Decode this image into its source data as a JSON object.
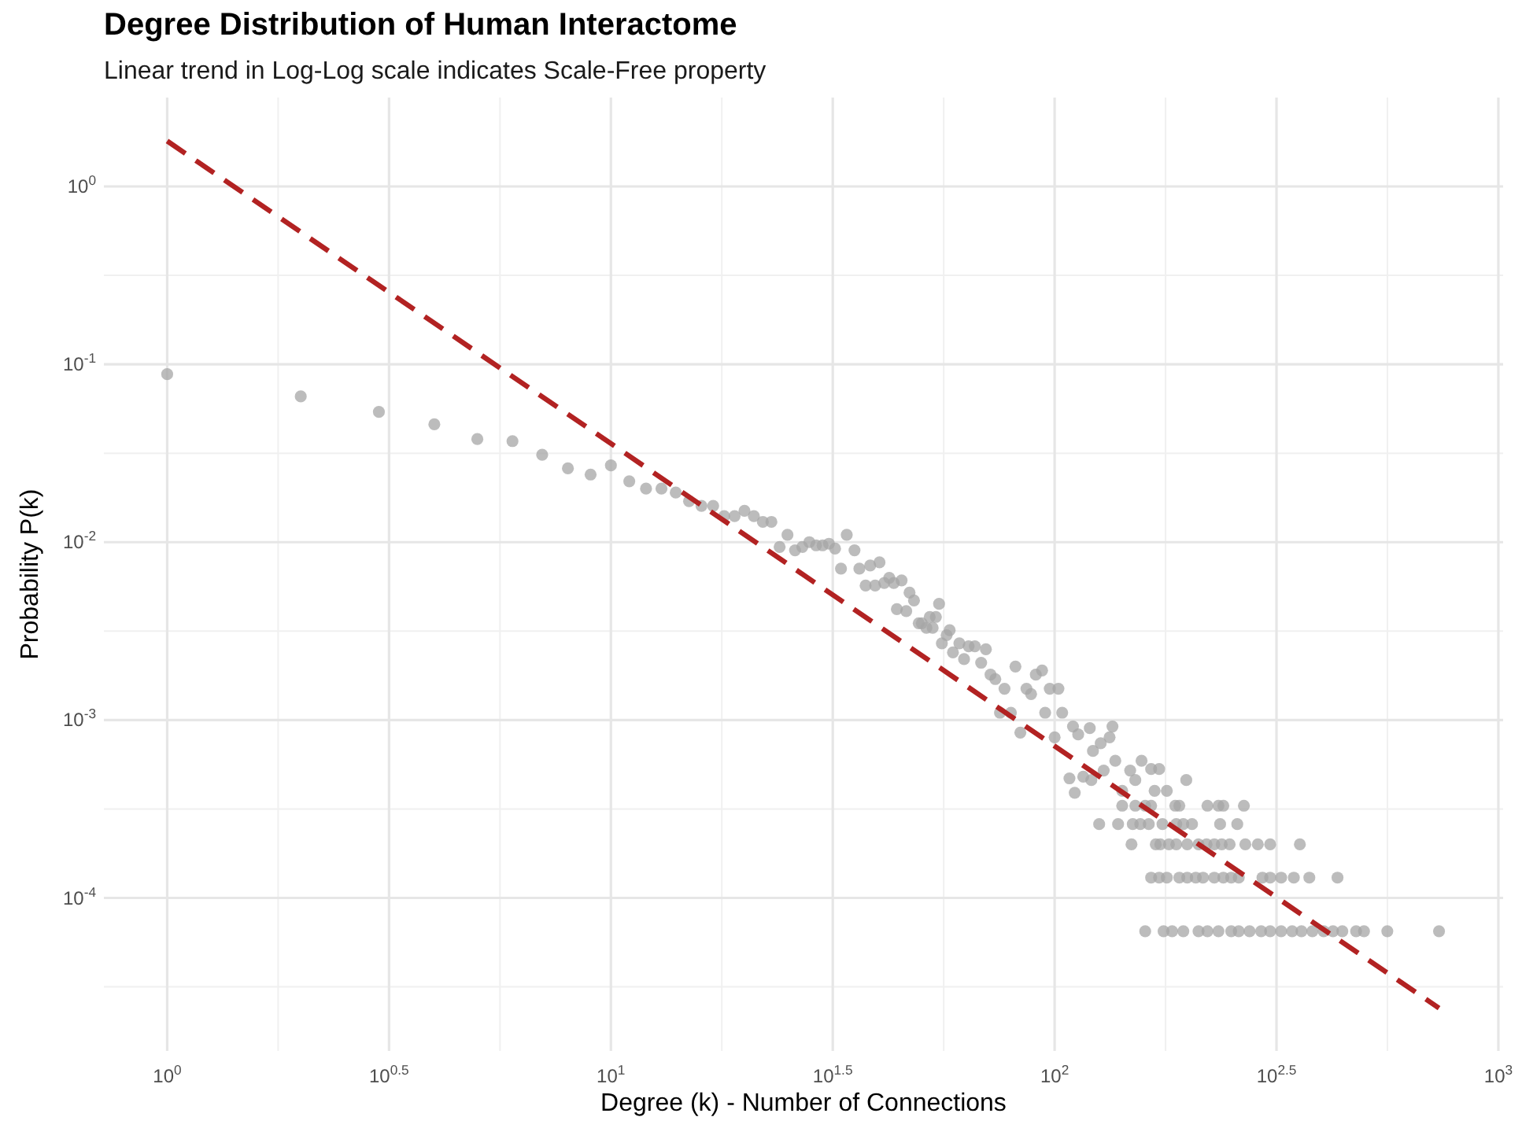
{
  "chart_data": {
    "type": "scatter",
    "title": "Degree Distribution of Human Interactome",
    "subtitle": "Linear trend in Log-Log scale indicates Scale-Free property",
    "xlabel": "Degree (k) - Number of Connections",
    "ylabel": "Probability P(k)",
    "log": "xy",
    "grid": true,
    "marker": "circle",
    "xlim": [
      0.72,
      1025
    ],
    "ylim": [
      1.38e-05,
      3.16
    ],
    "xticks": [
      {
        "value": 1,
        "label": "10$^{0}$"
      },
      {
        "value": 3.1623,
        "label": "10$^{0.5}$"
      },
      {
        "value": 10,
        "label": "10$^{1}$"
      },
      {
        "value": 31.623,
        "label": "10$^{1.5}$"
      },
      {
        "value": 100,
        "label": "10$^{2}$"
      },
      {
        "value": 316.23,
        "label": "10$^{2.5}$"
      },
      {
        "value": 1000,
        "label": "10$^{3}$"
      }
    ],
    "yticks": [
      {
        "value": 0.0001,
        "label": "10$^{-4}$"
      },
      {
        "value": 0.001,
        "label": "10$^{-3}$"
      },
      {
        "value": 0.01,
        "label": "10$^{-2}$"
      },
      {
        "value": 0.1,
        "label": "10$^{-1}$"
      },
      {
        "value": 1,
        "label": "10$^{0}$"
      }
    ],
    "series": [
      {
        "color": "#a6a6a6",
        "x": [
          1,
          2,
          3,
          4,
          5,
          6,
          7,
          8,
          9,
          10,
          11,
          12,
          13,
          14,
          15,
          16,
          17,
          18,
          19,
          20,
          21,
          22,
          23,
          24,
          25,
          26,
          27,
          28,
          29,
          30,
          31,
          32,
          33,
          34,
          35.4,
          36.3,
          38.4,
          40.3,
          37.5,
          39.4,
          41.3,
          42.4,
          43.4,
          45.2,
          44.1,
          46.3,
          47.1,
          48.2,
          49.4,
          50.2,
          51.4,
          52.3,
          53.1,
          54,
          54.9,
          55.7,
          57.1,
          58,
          59,
          61,
          62.5,
          64,
          66.1,
          68.3,
          70,
          71.7,
          73.5,
          75.3,
          77.1,
          79.7,
          81.6,
          83.7,
          86.4,
          88.5,
          90.7,
          93.7,
          95.2,
          97.5,
          100,
          102,
          104,
          108,
          110,
          113,
          116,
          120,
          122,
          127,
          133,
          135,
          111,
          121,
          129,
          137,
          142,
          148,
          152,
          157,
          165,
          172,
          168,
          179,
          198,
          142,
          152,
          160,
          165,
          187,
          191,
          221,
          234,
          240,
          267,
          126,
          139,
          150,
          156,
          163,
          175,
          188,
          195,
          204,
          236,
          258,
          149,
          169,
          173,
          181,
          188,
          199,
          211,
          220,
          229,
          238,
          248,
          269,
          287,
          306,
          357,
          165,
          172,
          179,
          191,
          199,
          208,
          216,
          229,
          240,
          250,
          260,
          294,
          306,
          324,
          346,
          375,
          434,
          160,
          176,
          184,
          195,
          211,
          221,
          234,
          250,
          260,
          275,
          292,
          306,
          324,
          343,
          360,
          381,
          404,
          424,
          445,
          478,
          498,
          562,
          735
        ],
        "values": [
          0.088,
          0.066,
          0.054,
          0.046,
          0.038,
          0.037,
          0.031,
          0.026,
          0.024,
          0.027,
          0.022,
          0.02,
          0.02,
          0.019,
          0.017,
          0.016,
          0.016,
          0.014,
          0.014,
          0.015,
          0.014,
          0.013,
          0.013,
          0.0094,
          0.011,
          0.009,
          0.0094,
          0.01,
          0.0096,
          0.0096,
          0.0098,
          0.0092,
          0.0071,
          0.011,
          0.009,
          0.0071,
          0.0074,
          0.0077,
          0.0057,
          0.0057,
          0.0059,
          0.0063,
          0.0059,
          0.0061,
          0.0042,
          0.0041,
          0.0052,
          0.0047,
          0.0035,
          0.0035,
          0.0033,
          0.0038,
          0.0033,
          0.0038,
          0.0045,
          0.0027,
          0.003,
          0.0032,
          0.0024,
          0.0027,
          0.0022,
          0.0026,
          0.0026,
          0.0021,
          0.0025,
          0.0018,
          0.0017,
          0.0011,
          0.0015,
          0.0011,
          0.002,
          0.00085,
          0.0015,
          0.0014,
          0.0018,
          0.0019,
          0.0011,
          0.0015,
          0.0008,
          0.0015,
          0.0011,
          0.00047,
          0.00092,
          0.00083,
          0.00048,
          0.0009,
          0.00067,
          0.00074,
          0.0008,
          0.00092,
          0.00039,
          0.00046,
          0.00052,
          0.00059,
          0.0004,
          0.00052,
          0.00046,
          0.00059,
          0.00053,
          0.00053,
          0.0004,
          0.0004,
          0.00046,
          0.00033,
          0.00033,
          0.00033,
          0.00033,
          0.00033,
          0.00033,
          0.00033,
          0.00033,
          0.00033,
          0.00033,
          0.00026,
          0.00026,
          0.00026,
          0.00026,
          0.00026,
          0.00026,
          0.00026,
          0.00026,
          0.00026,
          0.00026,
          0.00026,
          0.0002,
          0.0002,
          0.0002,
          0.0002,
          0.0002,
          0.0002,
          0.0002,
          0.0002,
          0.0002,
          0.0002,
          0.0002,
          0.0002,
          0.0002,
          0.0002,
          0.0002,
          0.00013,
          0.00013,
          0.00013,
          0.00013,
          0.00013,
          0.00013,
          0.00013,
          0.00013,
          0.00013,
          0.00013,
          0.00013,
          0.00013,
          0.00013,
          0.00013,
          0.00013,
          0.00013,
          0.00013,
          6.5e-05,
          6.5e-05,
          6.5e-05,
          6.5e-05,
          6.5e-05,
          6.5e-05,
          6.5e-05,
          6.5e-05,
          6.5e-05,
          6.5e-05,
          6.5e-05,
          6.5e-05,
          6.5e-05,
          6.5e-05,
          6.5e-05,
          6.5e-05,
          6.5e-05,
          6.5e-05,
          6.5e-05,
          6.5e-05,
          6.5e-05,
          6.5e-05,
          6.5e-05
        ]
      },
      {
        "type": "line",
        "color": "#b22222",
        "line_style": "dashed",
        "marker": "none",
        "x": [
          1,
          735
        ],
        "values": [
          1.8,
          2.4e-05
        ]
      }
    ]
  }
}
